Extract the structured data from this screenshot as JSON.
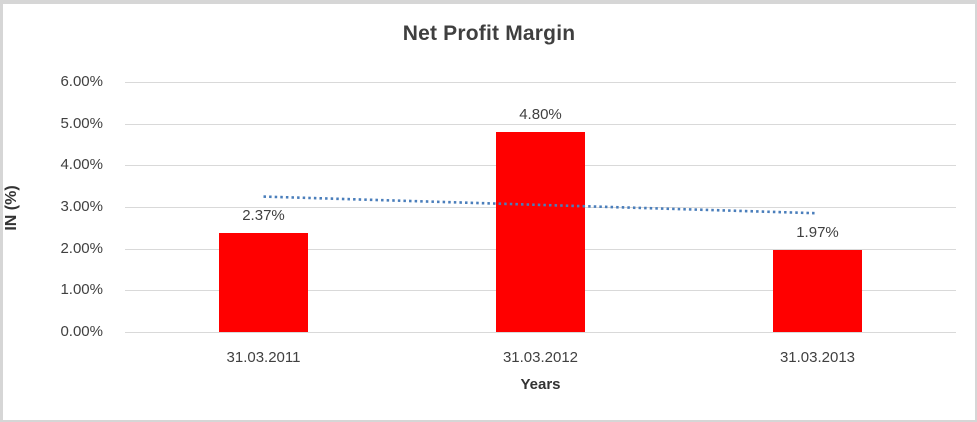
{
  "chart_data": {
    "type": "bar",
    "title": "Net Profit Margin",
    "xlabel": "Years",
    "ylabel": "IN (%)",
    "categories": [
      "31.03.2011",
      "31.03.2012",
      "31.03.2013"
    ],
    "values": [
      2.37,
      4.8,
      1.97
    ],
    "data_labels": [
      "2.37%",
      "4.80%",
      "1.97%"
    ],
    "y_ticks": [
      "0.00%",
      "1.00%",
      "2.00%",
      "3.00%",
      "4.00%",
      "5.00%",
      "6.00%"
    ],
    "ylim": [
      0,
      6
    ],
    "grid": true,
    "legend": "none",
    "bar_color": "#ff0000",
    "gridline_color": "#d9d9d9",
    "text_color": "#404040",
    "trendline": {
      "type": "linear",
      "style": "dotted",
      "color": "#4a7ebb",
      "start_value": 3.25,
      "end_value": 2.85
    }
  }
}
